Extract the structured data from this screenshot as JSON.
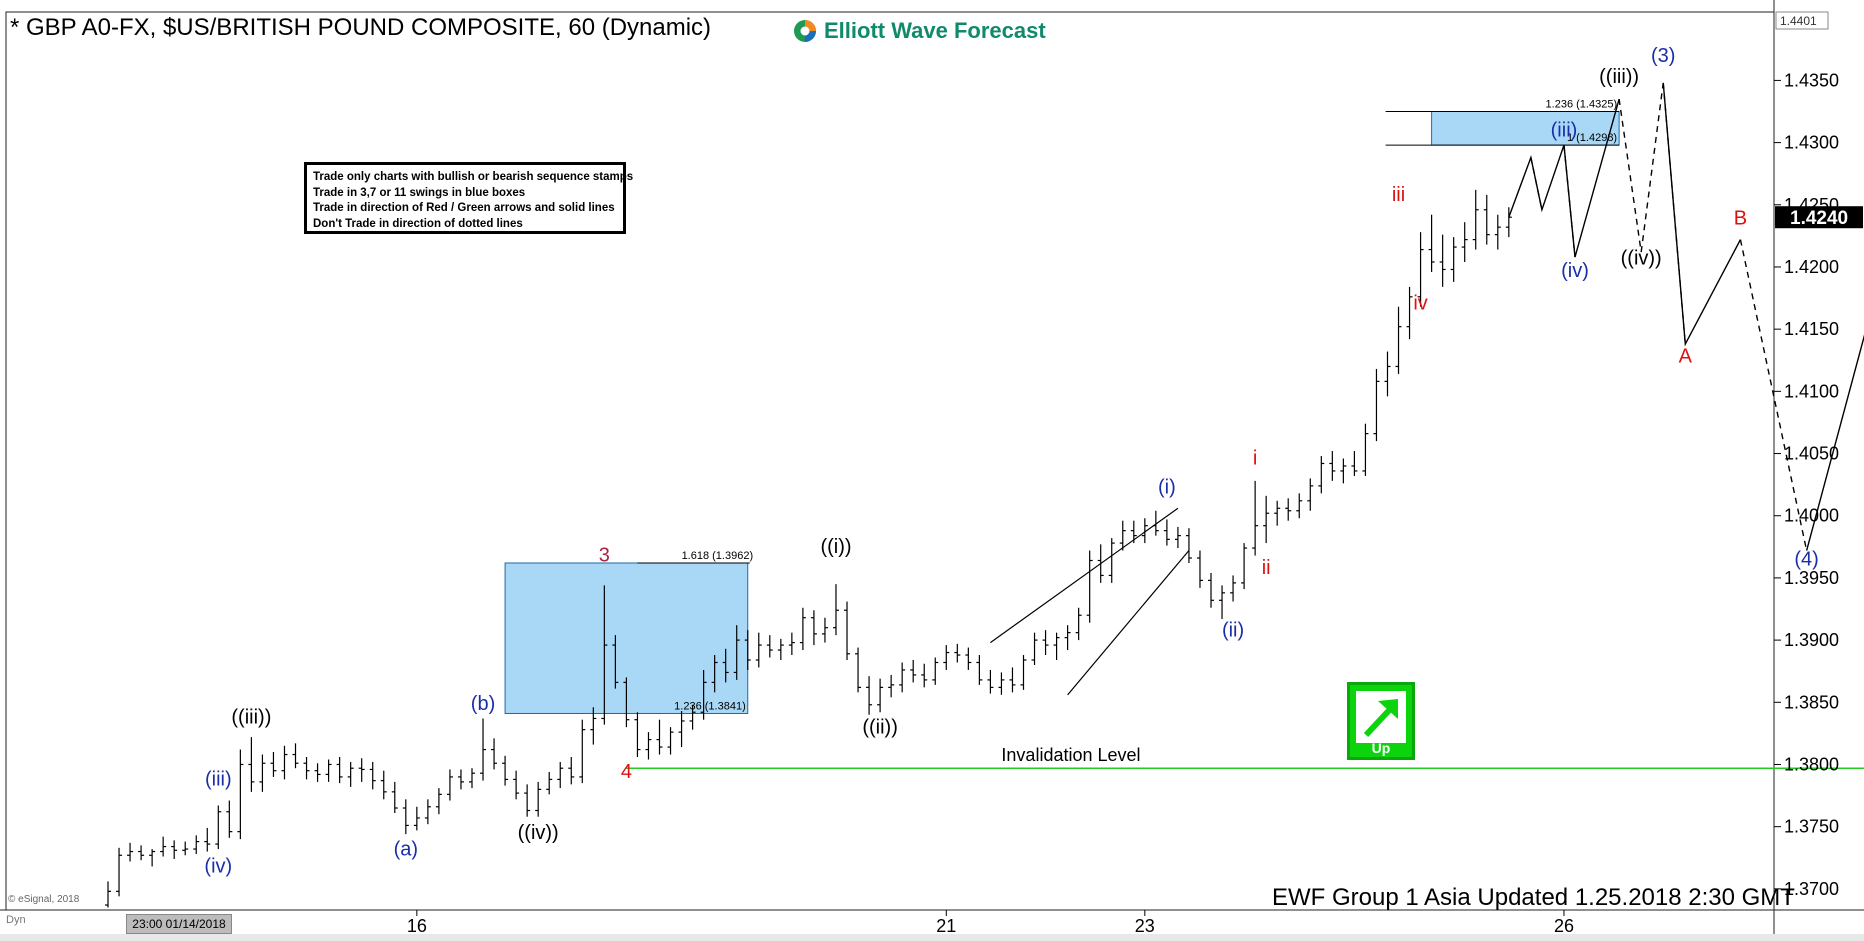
{
  "header": {
    "title": "* GBP A0-FX, $US/BRITISH POUND COMPOSITE, 60 (Dynamic)",
    "logo_text": "Elliott Wave Forecast"
  },
  "rules": [
    "Trade only charts with bullish or bearish sequence stamps",
    "Trade in 3,7 or 11 swings in blue boxes",
    "Trade in direction of Red / Green arrows and solid lines",
    "Don't Trade in direction of dotted lines"
  ],
  "footer": {
    "updated": "EWF Group 1 Asia Updated 1.25.2018 2:30 GMT",
    "copyright": "© eSignal, 2018",
    "dyn": "Dyn",
    "time_box": "23:00 01/14/2018",
    "up_label": "Up"
  },
  "chart_data": {
    "type": "line",
    "title": "* GBP A0-FX, $US/BRITISH POUND COMPOSITE, 60 (Dynamic)",
    "y_ticks": [
      1.37,
      1.375,
      1.38,
      1.385,
      1.39,
      1.395,
      1.4,
      1.405,
      1.41,
      1.415,
      1.42,
      1.425,
      1.43,
      1.435
    ],
    "y_tick_labels": [
      "1.3700",
      "1.3750",
      "1.3800",
      "1.3850",
      "1.3900",
      "1.3950",
      "1.4000",
      "1.4050",
      "1.4100",
      "1.4150",
      "1.4200",
      "1.4250",
      "1.4300",
      "1.4350"
    ],
    "ylim": [
      1.3683,
      1.4405
    ],
    "x_ticks": [
      {
        "label": "16",
        "bar": 28
      },
      {
        "label": "21",
        "bar": 76
      },
      {
        "label": "23",
        "bar": 94
      },
      {
        "label": "26",
        "bar": 132
      }
    ],
    "x_range_bars": [
      -5,
      180
    ],
    "last_price_label": "1.4240",
    "last_price": 1.424,
    "top_price_label": "1.4401",
    "grid": false,
    "colors": {
      "price": "#000000",
      "box": "#a9d8f7",
      "box_border": "#1a6aa8",
      "green": "#22cc22",
      "blue": "#1a2ea8",
      "red": "#dd1111",
      "maroon": "#b0223d"
    },
    "ohlc": [
      [
        1.3687,
        1.3706,
        1.3685,
        1.3698
      ],
      [
        1.3698,
        1.3733,
        1.3694,
        1.3727
      ],
      [
        1.3727,
        1.3737,
        1.3722,
        1.373
      ],
      [
        1.373,
        1.3735,
        1.3723,
        1.3727
      ],
      [
        1.3727,
        1.3732,
        1.3718,
        1.373
      ],
      [
        1.373,
        1.3742,
        1.3726,
        1.3734
      ],
      [
        1.3734,
        1.3739,
        1.3724,
        1.3731
      ],
      [
        1.3731,
        1.3738,
        1.3727,
        1.3732
      ],
      [
        1.3732,
        1.3743,
        1.3728,
        1.3738
      ],
      [
        1.3738,
        1.3749,
        1.373,
        1.3736
      ],
      [
        1.3736,
        1.3767,
        1.3732,
        1.3762
      ],
      [
        1.3762,
        1.3771,
        1.3741,
        1.3746
      ],
      [
        1.3746,
        1.3812,
        1.374,
        1.38
      ],
      [
        1.38,
        1.3822,
        1.3778,
        1.3786
      ],
      [
        1.3786,
        1.3808,
        1.3778,
        1.3801
      ],
      [
        1.3801,
        1.381,
        1.379,
        1.3795
      ],
      [
        1.3795,
        1.3815,
        1.3788,
        1.3808
      ],
      [
        1.3808,
        1.3817,
        1.3797,
        1.3801
      ],
      [
        1.3801,
        1.3806,
        1.3788,
        1.3795
      ],
      [
        1.3795,
        1.3801,
        1.3786,
        1.3792
      ],
      [
        1.3792,
        1.3804,
        1.3786,
        1.38
      ],
      [
        1.38,
        1.3806,
        1.3785,
        1.379
      ],
      [
        1.379,
        1.3802,
        1.3782,
        1.3797
      ],
      [
        1.3797,
        1.3805,
        1.3786,
        1.3796
      ],
      [
        1.3796,
        1.3802,
        1.378,
        1.3787
      ],
      [
        1.3787,
        1.3795,
        1.3772,
        1.3778
      ],
      [
        1.3778,
        1.3786,
        1.3761,
        1.3765
      ],
      [
        1.3765,
        1.3772,
        1.3744,
        1.3751
      ],
      [
        1.3751,
        1.3766,
        1.3747,
        1.3757
      ],
      [
        1.3757,
        1.3772,
        1.3752,
        1.3766
      ],
      [
        1.3766,
        1.3781,
        1.376,
        1.3776
      ],
      [
        1.3776,
        1.3796,
        1.3771,
        1.379
      ],
      [
        1.379,
        1.3796,
        1.378,
        1.3786
      ],
      [
        1.3786,
        1.3797,
        1.3781,
        1.3793
      ],
      [
        1.3793,
        1.3837,
        1.3787,
        1.3812
      ],
      [
        1.3812,
        1.3821,
        1.3796,
        1.3801
      ],
      [
        1.3801,
        1.3807,
        1.3783,
        1.3788
      ],
      [
        1.3788,
        1.3795,
        1.3772,
        1.3777
      ],
      [
        1.3777,
        1.3784,
        1.3758,
        1.3763
      ],
      [
        1.3763,
        1.3786,
        1.3758,
        1.378
      ],
      [
        1.378,
        1.3794,
        1.3776,
        1.3788
      ],
      [
        1.3788,
        1.3802,
        1.3781,
        1.3797
      ],
      [
        1.3797,
        1.3806,
        1.3784,
        1.379
      ],
      [
        1.379,
        1.3836,
        1.3785,
        1.3828
      ],
      [
        1.3828,
        1.3846,
        1.3816,
        1.3837
      ],
      [
        1.3837,
        1.3944,
        1.3832,
        1.3896
      ],
      [
        1.3896,
        1.3904,
        1.3861,
        1.3866
      ],
      [
        1.3866,
        1.387,
        1.383,
        1.3836
      ],
      [
        1.3836,
        1.3842,
        1.3806,
        1.3812
      ],
      [
        1.3812,
        1.3826,
        1.3804,
        1.382
      ],
      [
        1.382,
        1.3836,
        1.3808,
        1.3814
      ],
      [
        1.3814,
        1.383,
        1.3808,
        1.3826
      ],
      [
        1.3826,
        1.3843,
        1.3814,
        1.3835
      ],
      [
        1.3835,
        1.3848,
        1.3828,
        1.3842
      ],
      [
        1.3842,
        1.3876,
        1.3836,
        1.3866
      ],
      [
        1.3866,
        1.3888,
        1.3858,
        1.3882
      ],
      [
        1.3882,
        1.3893,
        1.3866,
        1.3874
      ],
      [
        1.3874,
        1.3912,
        1.3868,
        1.39
      ],
      [
        1.39,
        1.3908,
        1.3876,
        1.3884
      ],
      [
        1.3884,
        1.3906,
        1.3878,
        1.3896
      ],
      [
        1.3896,
        1.3904,
        1.3886,
        1.3892
      ],
      [
        1.3892,
        1.3901,
        1.3884,
        1.3896
      ],
      [
        1.3896,
        1.3906,
        1.3888,
        1.3898
      ],
      [
        1.3898,
        1.3926,
        1.3892,
        1.3918
      ],
      [
        1.3918,
        1.3924,
        1.3896,
        1.3905
      ],
      [
        1.3905,
        1.3918,
        1.3898,
        1.391
      ],
      [
        1.391,
        1.3945,
        1.3904,
        1.3924
      ],
      [
        1.3924,
        1.3931,
        1.3884,
        1.3889
      ],
      [
        1.3889,
        1.3894,
        1.3858,
        1.3862
      ],
      [
        1.3862,
        1.3871,
        1.384,
        1.3848
      ],
      [
        1.3848,
        1.3869,
        1.3842,
        1.3862
      ],
      [
        1.3862,
        1.3872,
        1.3854,
        1.3864
      ],
      [
        1.3864,
        1.3882,
        1.3858,
        1.3876
      ],
      [
        1.3876,
        1.3884,
        1.3866,
        1.3872
      ],
      [
        1.3872,
        1.3881,
        1.3862,
        1.3868
      ],
      [
        1.3868,
        1.3886,
        1.3864,
        1.3882
      ],
      [
        1.3882,
        1.3896,
        1.3876,
        1.389
      ],
      [
        1.389,
        1.3897,
        1.3882,
        1.3888
      ],
      [
        1.3888,
        1.3894,
        1.3876,
        1.3882
      ],
      [
        1.3882,
        1.3888,
        1.3864,
        1.3868
      ],
      [
        1.3868,
        1.3876,
        1.3857,
        1.3862
      ],
      [
        1.3862,
        1.3874,
        1.3856,
        1.3868
      ],
      [
        1.3868,
        1.3878,
        1.3858,
        1.3864
      ],
      [
        1.3864,
        1.3888,
        1.386,
        1.3884
      ],
      [
        1.3884,
        1.3906,
        1.388,
        1.39
      ],
      [
        1.39,
        1.3908,
        1.3888,
        1.3896
      ],
      [
        1.3896,
        1.3906,
        1.3884,
        1.3902
      ],
      [
        1.3902,
        1.3912,
        1.3892,
        1.3906
      ],
      [
        1.3906,
        1.3926,
        1.39,
        1.392
      ],
      [
        1.392,
        1.3972,
        1.3914,
        1.3964
      ],
      [
        1.3964,
        1.3977,
        1.3946,
        1.3952
      ],
      [
        1.3952,
        1.3982,
        1.3946,
        1.3978
      ],
      [
        1.3978,
        1.3996,
        1.3972,
        1.3988
      ],
      [
        1.3988,
        1.3996,
        1.3978,
        1.3984
      ],
      [
        1.3984,
        1.3998,
        1.3978,
        1.3992
      ],
      [
        1.3992,
        1.4004,
        1.3984,
        1.3988
      ],
      [
        1.3988,
        1.3997,
        1.3976,
        1.3981
      ],
      [
        1.3981,
        1.3991,
        1.3974,
        1.3984
      ],
      [
        1.3984,
        1.399,
        1.3962,
        1.3966
      ],
      [
        1.3966,
        1.3972,
        1.3942,
        1.3948
      ],
      [
        1.3948,
        1.3954,
        1.3926,
        1.3932
      ],
      [
        1.3932,
        1.3944,
        1.3917,
        1.3938
      ],
      [
        1.3938,
        1.3952,
        1.3931,
        1.3946
      ],
      [
        1.3946,
        1.3978,
        1.3941,
        1.3974
      ],
      [
        1.3974,
        1.4028,
        1.3968,
        1.3992
      ],
      [
        1.3992,
        1.4016,
        1.3978,
        1.4002
      ],
      [
        1.4002,
        1.4012,
        1.3992,
        1.4006
      ],
      [
        1.4006,
        1.4014,
        1.3996,
        1.4004
      ],
      [
        1.4004,
        1.4018,
        1.3998,
        1.4012
      ],
      [
        1.4012,
        1.403,
        1.4004,
        1.4024
      ],
      [
        1.4024,
        1.4048,
        1.4018,
        1.4042
      ],
      [
        1.4042,
        1.4052,
        1.4028,
        1.4036
      ],
      [
        1.4036,
        1.4046,
        1.4026,
        1.404
      ],
      [
        1.404,
        1.4052,
        1.4032,
        1.4036
      ],
      [
        1.4036,
        1.4074,
        1.4032,
        1.4066
      ],
      [
        1.4066,
        1.4118,
        1.406,
        1.4108
      ],
      [
        1.4108,
        1.4132,
        1.4096,
        1.412
      ],
      [
        1.412,
        1.4168,
        1.4114,
        1.4152
      ],
      [
        1.4152,
        1.4184,
        1.4142,
        1.4176
      ],
      [
        1.4176,
        1.4228,
        1.4168,
        1.4214
      ],
      [
        1.4214,
        1.4242,
        1.4196,
        1.4204
      ],
      [
        1.4204,
        1.4226,
        1.4184,
        1.4198
      ],
      [
        1.4198,
        1.4224,
        1.4188,
        1.4216
      ],
      [
        1.4216,
        1.4236,
        1.4204,
        1.4222
      ],
      [
        1.4222,
        1.4262,
        1.4214,
        1.4246
      ],
      [
        1.4246,
        1.4258,
        1.4218,
        1.4226
      ],
      [
        1.4226,
        1.4242,
        1.4214,
        1.4232
      ],
      [
        1.4232,
        1.4248,
        1.4224,
        1.424
      ]
    ],
    "fib_boxes": [
      {
        "label_top": "1.618 (1.3962)",
        "label_bottom": "1.236 (1.3841)",
        "top": 1.3962,
        "bottom": 1.3841,
        "bar_start": 36,
        "bar_end": 58
      },
      {
        "label_top": "1.236 (1.4325)",
        "label_bottom": "1 (1.4298)",
        "top": 1.4325,
        "bottom": 1.4298,
        "bar_start": 120,
        "bar_end": 137
      }
    ],
    "invalidation": {
      "label": "Invalidation Level",
      "price": 1.3797,
      "price_label": "1.3797",
      "bar_start": 47,
      "bar_end": 180
    },
    "projection": {
      "solid": [
        [
          [
            127,
            1.424
          ],
          [
            129,
            1.4288
          ],
          [
            130,
            1.4246
          ],
          [
            132,
            1.4298
          ],
          [
            133,
            1.4208
          ],
          [
            137,
            1.4335
          ]
        ],
        [
          [
            141,
            1.4348
          ],
          [
            143,
            1.4138
          ],
          [
            148,
            1.4222
          ]
        ],
        [
          [
            154,
            1.3972
          ],
          [
            164,
            1.4302
          ]
        ]
      ],
      "dashed": [
        [
          [
            129,
            1.4288
          ],
          [
            130,
            1.4246
          ]
        ],
        [
          [
            132,
            1.4298
          ],
          [
            133,
            1.4208
          ]
        ],
        [
          [
            137,
            1.4335
          ],
          [
            139,
            1.4212
          ]
        ],
        [
          [
            139,
            1.4212
          ],
          [
            141,
            1.4348
          ]
        ],
        [
          [
            141,
            1.4348
          ],
          [
            143,
            1.4138
          ]
        ],
        [
          [
            148,
            1.4222
          ],
          [
            154,
            1.3972
          ]
        ]
      ]
    },
    "channels": [
      [
        [
          80,
          1.3898
        ],
        [
          97,
          1.4006
        ]
      ],
      [
        [
          87,
          1.3856
        ],
        [
          98,
          1.3972
        ]
      ]
    ],
    "labels": [
      {
        "text": "((iii))",
        "bar": 13,
        "price": 1.3833,
        "color": "black"
      },
      {
        "text": "(iii)",
        "bar": 10,
        "price": 1.3783,
        "color": "blue"
      },
      {
        "text": "(iv)",
        "bar": 10,
        "price": 1.3713,
        "color": "blue"
      },
      {
        "text": "(a)",
        "bar": 27,
        "price": 1.3727,
        "color": "blue"
      },
      {
        "text": "(b)",
        "bar": 34,
        "price": 1.3844,
        "color": "blue"
      },
      {
        "text": "((iv))",
        "bar": 39,
        "price": 1.374,
        "color": "black"
      },
      {
        "text": "3",
        "bar": 45,
        "price": 1.3963,
        "color": "maroon"
      },
      {
        "text": "4",
        "bar": 47,
        "price": 1.3789,
        "color": "red"
      },
      {
        "text": "((i))",
        "bar": 66,
        "price": 1.397,
        "color": "black"
      },
      {
        "text": "((ii))",
        "bar": 70,
        "price": 1.3825,
        "color": "black"
      },
      {
        "text": "(i)",
        "bar": 96,
        "price": 1.4018,
        "color": "blue"
      },
      {
        "text": "(ii)",
        "bar": 102,
        "price": 1.3903,
        "color": "blue"
      },
      {
        "text": "i",
        "bar": 104,
        "price": 1.4041,
        "color": "red"
      },
      {
        "text": "ii",
        "bar": 105,
        "price": 1.3953,
        "color": "red"
      },
      {
        "text": "iii",
        "bar": 117,
        "price": 1.4253,
        "color": "red"
      },
      {
        "text": "iv",
        "bar": 119,
        "price": 1.4166,
        "color": "red"
      },
      {
        "text": "(iii)",
        "bar": 132,
        "price": 1.4305,
        "color": "blue"
      },
      {
        "text": "(iv)",
        "bar": 133,
        "price": 1.4192,
        "color": "blue"
      },
      {
        "text": "((iii))",
        "bar": 137,
        "price": 1.4348,
        "color": "black"
      },
      {
        "text": "((iv))",
        "bar": 139,
        "price": 1.4202,
        "color": "black"
      },
      {
        "text": "(3)",
        "bar": 141,
        "price": 1.4365,
        "color": "blue"
      },
      {
        "text": "A",
        "bar": 143,
        "price": 1.4123,
        "color": "red"
      },
      {
        "text": "B",
        "bar": 148,
        "price": 1.4234,
        "color": "red"
      },
      {
        "text": "(4)",
        "bar": 154,
        "price": 1.396,
        "color": "blue"
      }
    ]
  }
}
